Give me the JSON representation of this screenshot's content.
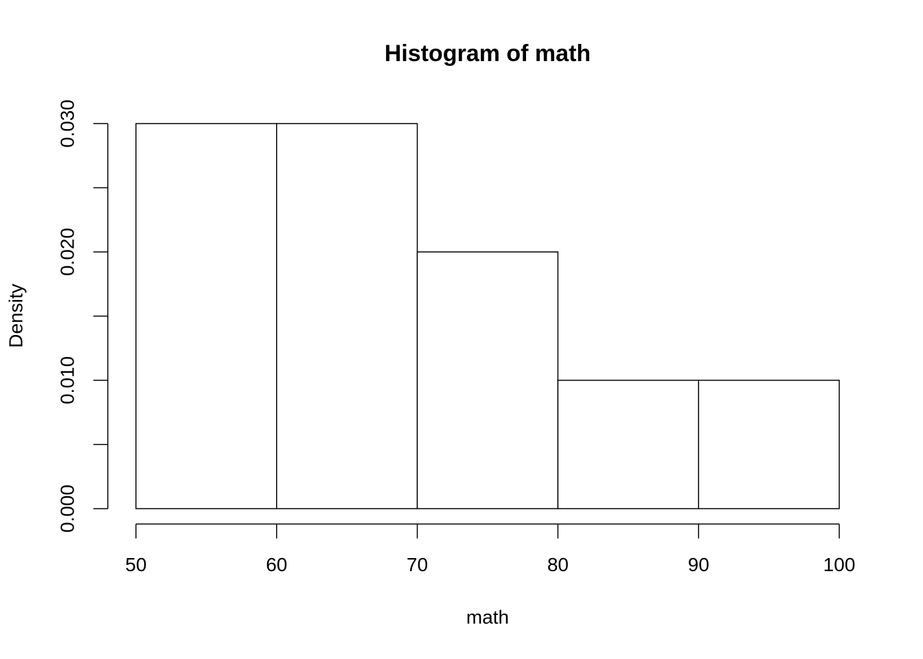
{
  "chart_data": {
    "type": "histogram",
    "title": "Histogram of math",
    "x_label": "math",
    "y_label": "Density",
    "bins": [
      50,
      60,
      70,
      80,
      90,
      100
    ],
    "values": [
      0.03,
      0.03,
      0.02,
      0.01,
      0.01
    ],
    "color": "#ffffff",
    "xlim": [
      48,
      102
    ],
    "ylim": [
      -0.0012,
      0.0312
    ],
    "xticks": [
      50,
      60,
      70,
      80,
      90,
      100
    ],
    "yticks": [
      {
        "value": 0,
        "label": "0.000"
      },
      {
        "value": 0.005,
        "label": null
      },
      {
        "value": 0.01,
        "label": "0.010"
      },
      {
        "value": 0.015,
        "label": null
      },
      {
        "value": 0.02,
        "label": "0.020"
      },
      {
        "value": 0.025,
        "label": null
      },
      {
        "value": 0.03,
        "label": "0.030"
      }
    ],
    "grid": false
  }
}
